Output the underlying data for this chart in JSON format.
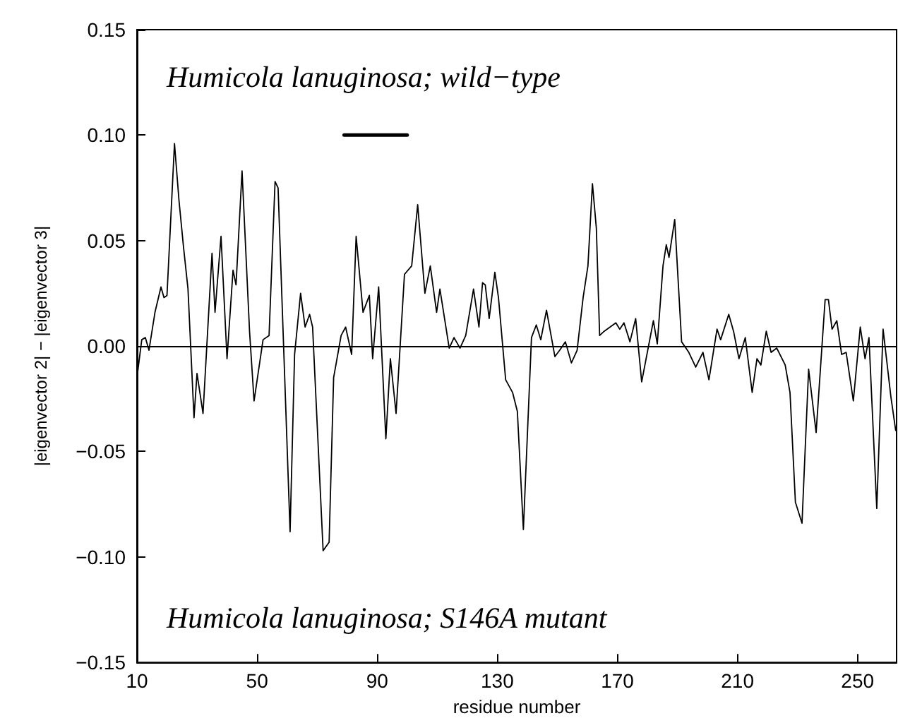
{
  "chart_data": {
    "type": "line",
    "xlabel": "residue number",
    "ylabel": "|eigenvector 2| − |eigenvector 3|",
    "annotations": [
      "Humicola lanuginosa; wild−type",
      "Humicola lanuginosa; S146A mutant"
    ],
    "xlim": [
      10,
      263
    ],
    "xticks": [
      10,
      50,
      90,
      130,
      170,
      210,
      250
    ],
    "ylim": [
      -0.15,
      0.15
    ],
    "yticks": [
      {
        "value": -0.15,
        "label": "−0.15"
      },
      {
        "value": -0.1,
        "label": "−0.10"
      },
      {
        "value": -0.05,
        "label": "−0.05"
      },
      {
        "value": 0,
        "label": "0.00"
      },
      {
        "value": 0.05,
        "label": "0.05"
      },
      {
        "value": 0.1,
        "label": "0.10"
      },
      {
        "value": 0.15,
        "label": "0.15"
      }
    ],
    "grid": false,
    "marker": "none",
    "line_style": "solid",
    "ref_lines": [
      {
        "axis": "y",
        "value": 0,
        "color": "#000000"
      }
    ],
    "series": [
      {
        "color": "#000000",
        "x": [
          10,
          11.6,
          12.8,
          14,
          16,
          18,
          19,
          20,
          22.5,
          24,
          25.5,
          27,
          29,
          30,
          32,
          35,
          36,
          38,
          40,
          42,
          43,
          45,
          47.5,
          49,
          52,
          54,
          56,
          57,
          61,
          62.5,
          64.5,
          66,
          67.5,
          68.5,
          72,
          74,
          75.5,
          78,
          79.5,
          81.5,
          83,
          85.3,
          87.4,
          88.5,
          90.5,
          92.9,
          94.4,
          96.3,
          99.1,
          101.5,
          103.5,
          105.9,
          107.7,
          109.8,
          110.9,
          114,
          115.6,
          117.6,
          119.5,
          122.1,
          123.9,
          125.1,
          126,
          127.3,
          129.2,
          130.4,
          132.8,
          135.1,
          136.7,
          138.7,
          141.4,
          143,
          144.5,
          146.4,
          149.2,
          150.8,
          152.7,
          154.7,
          156.6,
          158.6,
          160.2,
          161.7,
          163,
          164.1,
          165.6,
          169.5,
          170.8,
          172.2,
          174.2,
          176.1,
          178.1,
          182,
          183.3,
          185.2,
          186.3,
          187.2,
          189.1,
          191.4,
          193.8,
          196.1,
          198.5,
          200.5,
          203.2,
          204.4,
          207.1,
          208.7,
          210.5,
          212.6,
          214.9,
          216.5,
          217.8,
          219.6,
          221.2,
          223.1,
          225.9,
          227.5,
          229.3,
          231.5,
          233.7,
          236.2,
          239.2,
          240.3,
          241.5,
          243.1,
          244.7,
          246.2,
          248.6,
          250.9,
          252.5,
          253.8,
          256.4,
          258.5,
          261.1,
          262.7
        ],
        "values": [
          -0.015,
          0.003,
          0.004,
          -0.002,
          0.016,
          0.028,
          0.023,
          0.024,
          0.096,
          0.069,
          0.047,
          0.027,
          -0.034,
          -0.013,
          -0.032,
          0.044,
          0.016,
          0.052,
          -0.006,
          0.036,
          0.029,
          0.083,
          0.007,
          -0.026,
          0.003,
          0.005,
          0.078,
          0.075,
          -0.088,
          -0.004,
          0.025,
          0.009,
          0.015,
          0.009,
          -0.097,
          -0.093,
          -0.015,
          0.005,
          0.009,
          -0.004,
          0.052,
          0.016,
          0.024,
          -0.006,
          0.028,
          -0.044,
          -0.006,
          -0.032,
          0.034,
          0.038,
          0.067,
          0.025,
          0.038,
          0.016,
          0.027,
          -0.001,
          0.004,
          -0.001,
          0.005,
          0.027,
          0.009,
          0.03,
          0.029,
          0.013,
          0.035,
          0.023,
          -0.016,
          -0.022,
          -0.031,
          -0.087,
          0.004,
          0.01,
          0.003,
          0.017,
          -0.005,
          -0.002,
          0.002,
          -0.008,
          -0.002,
          0.023,
          0.038,
          0.077,
          0.056,
          0.005,
          0.007,
          0.011,
          0.008,
          0.011,
          0.002,
          0.013,
          -0.017,
          0.012,
          0.001,
          0.038,
          0.048,
          0.042,
          0.06,
          0.002,
          -0.003,
          -0.01,
          -0.003,
          -0.016,
          0.008,
          0.003,
          0.015,
          0.007,
          -0.006,
          0.004,
          -0.022,
          -0.006,
          -0.009,
          0.007,
          -0.003,
          -0.001,
          -0.009,
          -0.022,
          -0.074,
          -0.084,
          -0.011,
          -0.041,
          0.022,
          0.022,
          0.008,
          0.012,
          -0.004,
          -0.003,
          -0.026,
          0.009,
          -0.006,
          0.004,
          -0.077,
          0.008,
          -0.024,
          -0.04
        ]
      },
      {
        "color": "#000000",
        "x": [
          79,
          100
        ],
        "values": [
          0.1,
          0.1
        ]
      }
    ]
  }
}
